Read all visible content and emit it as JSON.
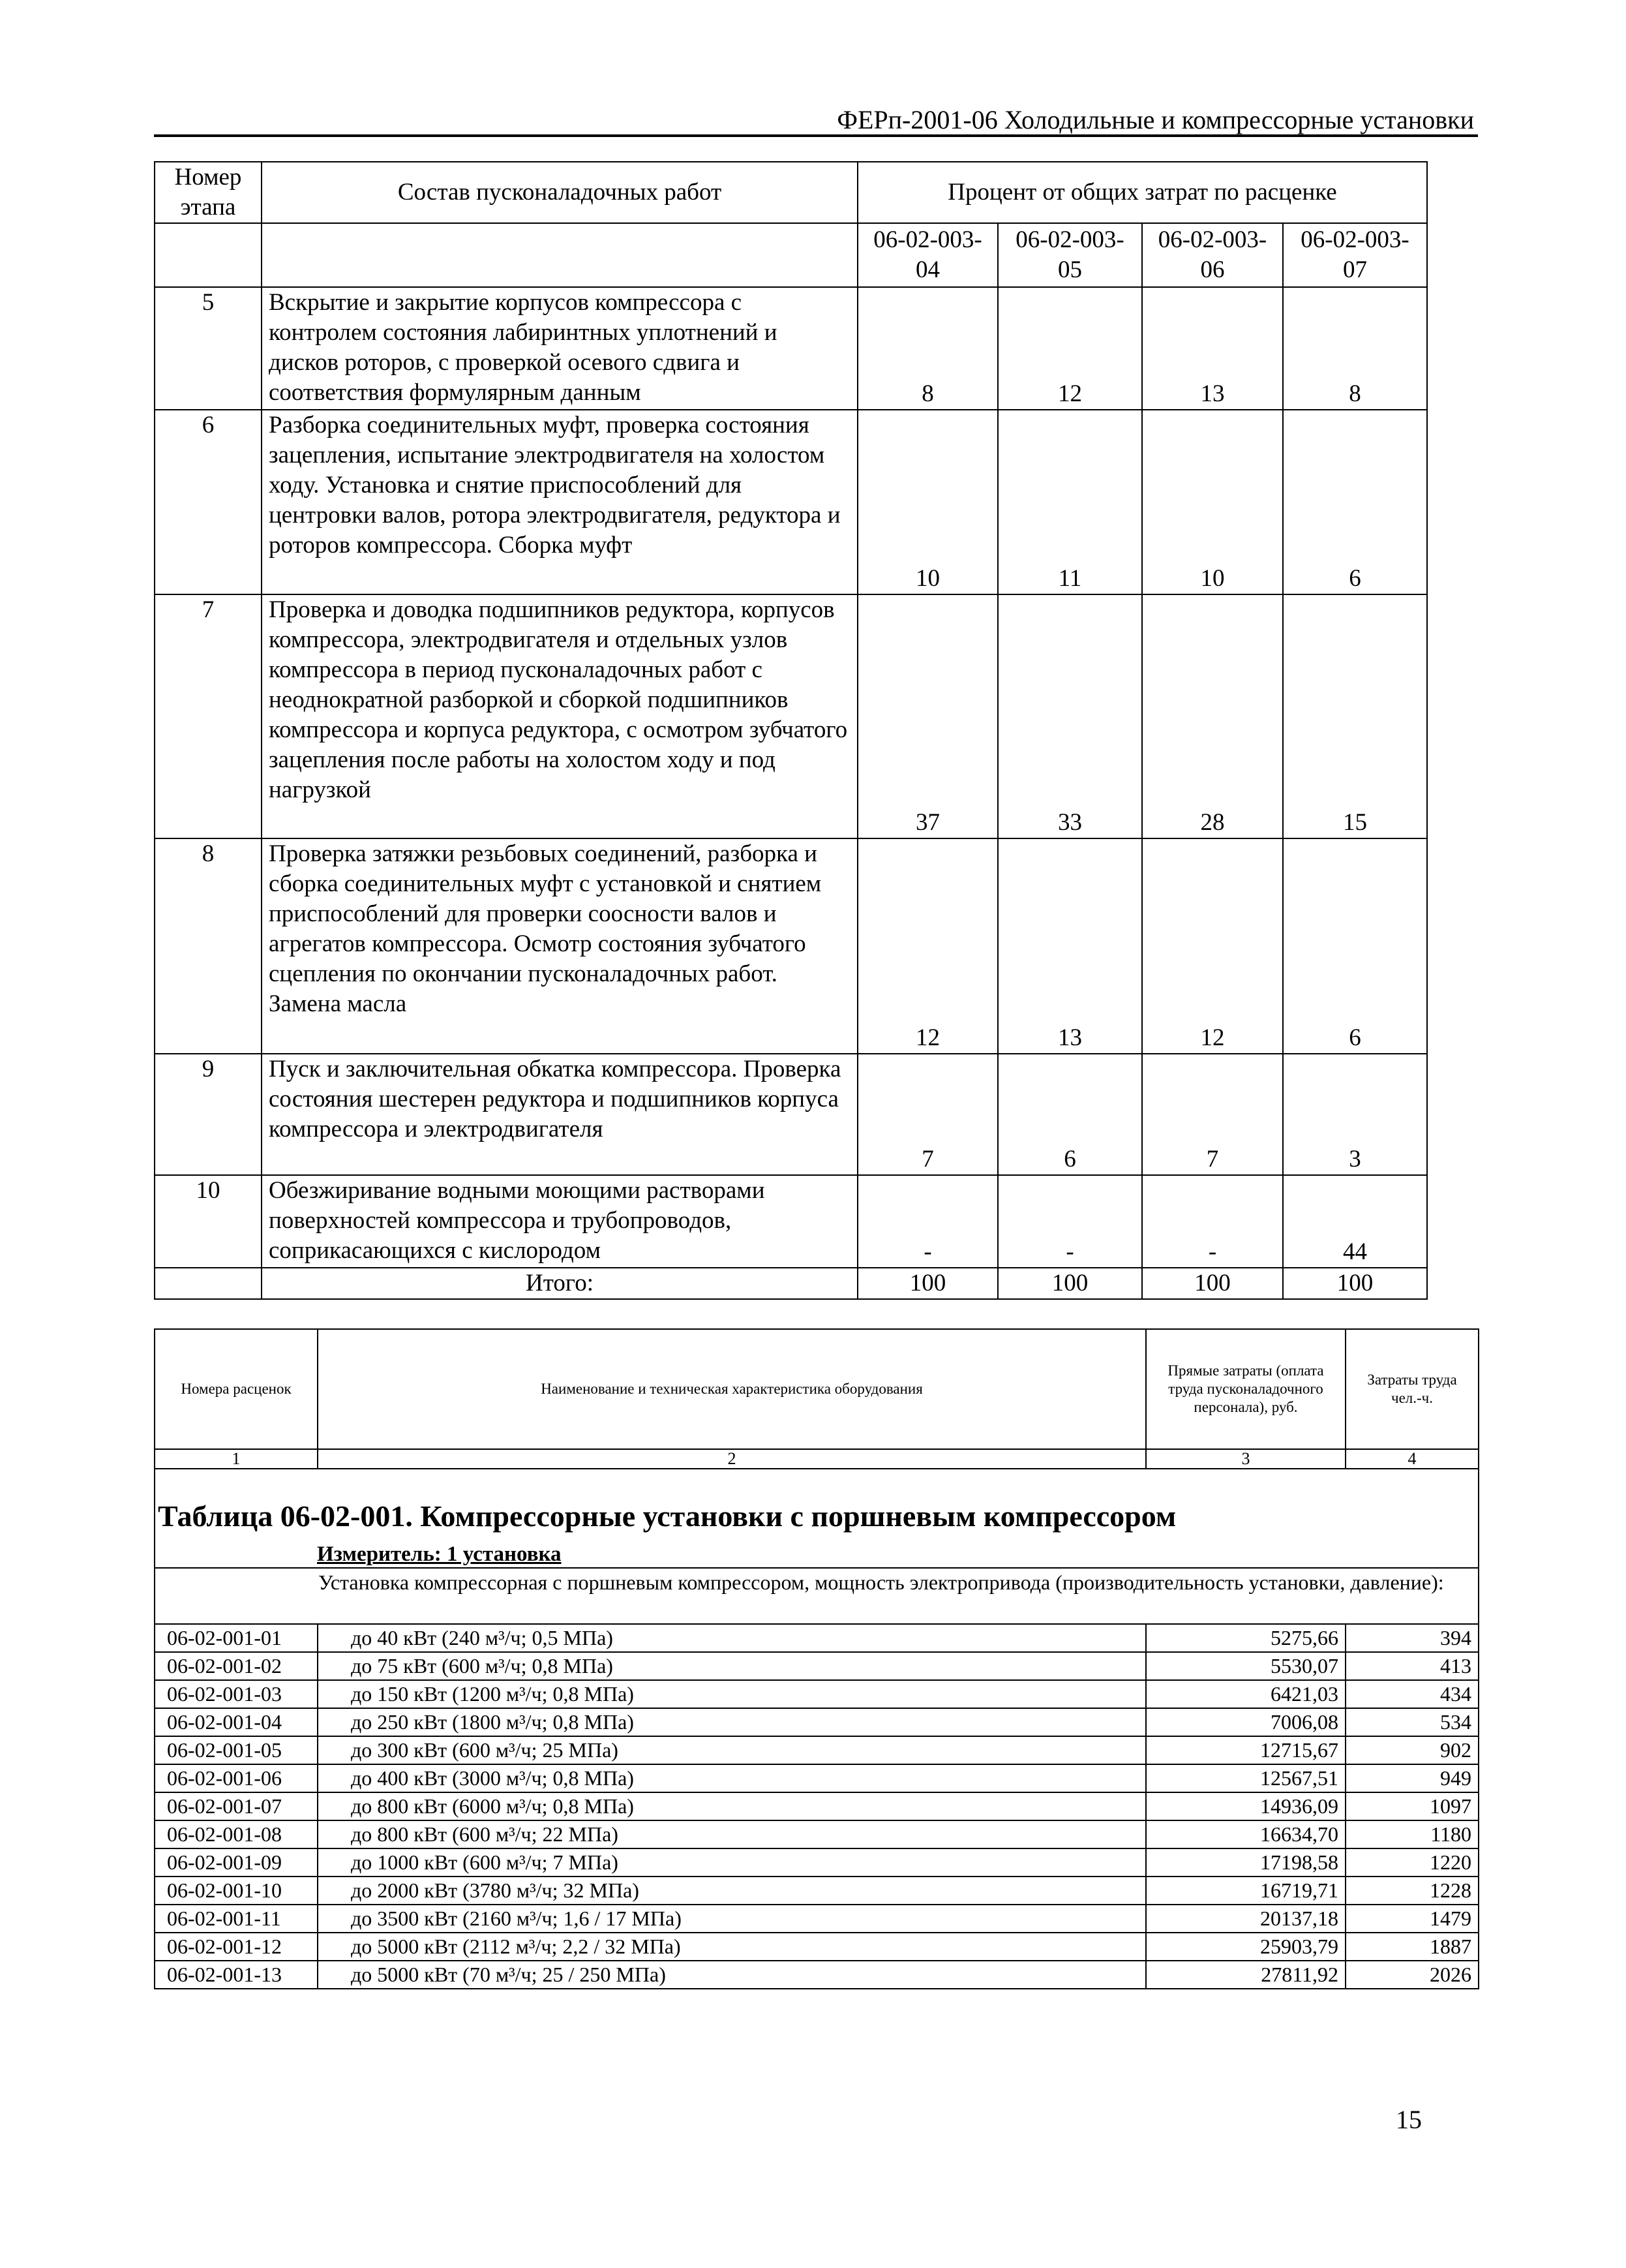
{
  "header": {
    "title": "ФЕРп-2001-06 Холодильные и компрессорные установки"
  },
  "table1": {
    "col_stage": "Номер этапа",
    "col_work": "Состав пусконаладочных работ",
    "col_percent": "Процент от общих затрат по расценке",
    "codes": [
      "06-02-003-04",
      "06-02-003-05",
      "06-02-003-06",
      "06-02-003-07"
    ],
    "rows": [
      {
        "stage": "5",
        "text": "Вскрытие и закрытие корпусов компрессора с контролем состояния лабиринтных уплотнений и дисков роторов, с проверкой осевого сдвига и соответствия формулярным данным",
        "values": [
          "8",
          "12",
          "13",
          "8"
        ]
      },
      {
        "stage": "6",
        "text": "Разборка соединительных муфт, проверка состояния зацепления, испытание электродвигателя на холостом ходу. Установка и снятие приспособлений для центровки валов, ротора электродвигателя, редуктора и роторов компрессора. Сборка муфт",
        "values": [
          "10",
          "11",
          "10",
          "6"
        ]
      },
      {
        "stage": "7",
        "text": "Проверка и доводка подшипников редуктора, корпусов компрессора, электродвигателя и отдельных узлов компрессора в период пусконаладочных работ с неоднократной разборкой и сборкой подшипников компрессора и корпуса редуктора, с осмотром зубчатого зацепления после работы на холостом ходу и под нагрузкой",
        "values": [
          "37",
          "33",
          "28",
          "15"
        ]
      },
      {
        "stage": "8",
        "text": "Проверка затяжки резьбовых соединений, разборка и сборка соединительных муфт с установкой и снятием приспособлений для проверки соосности валов и агрегатов компрессора. Осмотр состояния зубчатого сцепления по окончании пусконаладочных работ. Замена масла",
        "values": [
          "12",
          "13",
          "12",
          "6"
        ]
      },
      {
        "stage": "9",
        "text": "Пуск и заключительная обкатка компрессора. Проверка состояния шестерен редуктора и подшипников корпуса компрессора и электродвигателя",
        "values": [
          "7",
          "6",
          "7",
          "3"
        ]
      },
      {
        "stage": "10",
        "text": "Обезжиривание водными моющими растворами поверхностей компрессора и трубопроводов, соприкасающихся с кислородом",
        "values": [
          "-",
          "-",
          "-",
          "44"
        ]
      }
    ],
    "total_label": "Итого:",
    "totals": [
      "100",
      "100",
      "100",
      "100"
    ]
  },
  "table2": {
    "col1": "Номера расценок",
    "col2": "Наименование и техническая характеристика оборудования",
    "col3": "Прямые затраты (оплата труда пусконаладочного персонала), руб.",
    "col4": "Затраты труда чел.-ч.",
    "col_numbers": [
      "1",
      "2",
      "3",
      "4"
    ],
    "title": "Таблица 06-02-001. Компрессорные установки с поршневым компрессором",
    "measure": "Измеритель: 1 установка",
    "group_text": "Установка компрессорная с поршневым компрессором, мощность электропривода (производительность установки, давление):",
    "rows": [
      {
        "code": "06-02-001-01",
        "name": "до 40 кВт (240 м³/ч; 0,5 МПа)",
        "cost": "5275,66",
        "labor": "394"
      },
      {
        "code": "06-02-001-02",
        "name": "до 75 кВт (600 м³/ч; 0,8 МПа)",
        "cost": "5530,07",
        "labor": "413"
      },
      {
        "code": "06-02-001-03",
        "name": "до 150 кВт (1200 м³/ч; 0,8 МПа)",
        "cost": "6421,03",
        "labor": "434"
      },
      {
        "code": "06-02-001-04",
        "name": "до 250 кВт (1800 м³/ч; 0,8 МПа)",
        "cost": "7006,08",
        "labor": "534"
      },
      {
        "code": "06-02-001-05",
        "name": "до 300 кВт (600 м³/ч; 25 МПа)",
        "cost": "12715,67",
        "labor": "902"
      },
      {
        "code": "06-02-001-06",
        "name": "до 400 кВт (3000 м³/ч; 0,8 МПа)",
        "cost": "12567,51",
        "labor": "949"
      },
      {
        "code": "06-02-001-07",
        "name": "до 800 кВт (6000 м³/ч; 0,8 МПа)",
        "cost": "14936,09",
        "labor": "1097"
      },
      {
        "code": "06-02-001-08",
        "name": "до 800 кВт (600 м³/ч; 22 МПа)",
        "cost": "16634,70",
        "labor": "1180"
      },
      {
        "code": "06-02-001-09",
        "name": "до 1000 кВт (600 м³/ч; 7 МПа)",
        "cost": "17198,58",
        "labor": "1220"
      },
      {
        "code": "06-02-001-10",
        "name": "до 2000 кВт (3780 м³/ч; 32 МПа)",
        "cost": "16719,71",
        "labor": "1228"
      },
      {
        "code": "06-02-001-11",
        "name": "до 3500 кВт (2160 м³/ч; 1,6 / 17 МПа)",
        "cost": "20137,18",
        "labor": "1479"
      },
      {
        "code": "06-02-001-12",
        "name": "до 5000 кВт (2112 м³/ч; 2,2 / 32 МПа)",
        "cost": "25903,79",
        "labor": "1887"
      },
      {
        "code": "06-02-001-13",
        "name": "до 5000 кВт (70 м³/ч; 25 / 250 МПа)",
        "cost": "27811,92",
        "labor": "2026"
      }
    ]
  },
  "page_number": "15"
}
